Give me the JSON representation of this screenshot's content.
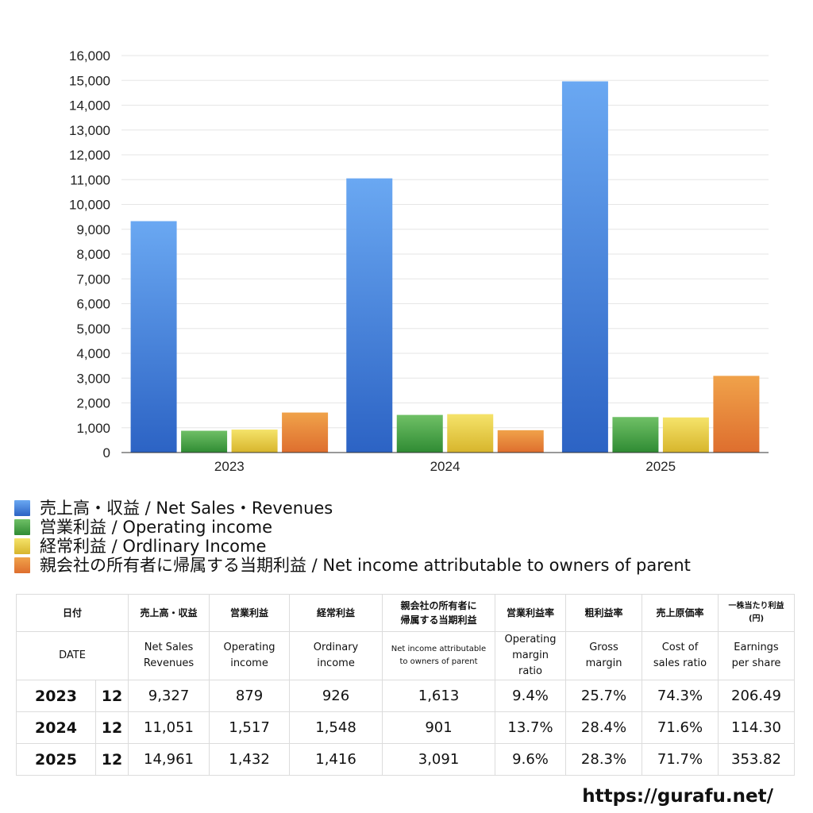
{
  "chart_data": {
    "type": "bar",
    "categories": [
      "2023",
      "2024",
      "2025"
    ],
    "series": [
      {
        "name": "売上高・収益 / Net Sales・Revenues",
        "values": [
          9327,
          11051,
          14961
        ]
      },
      {
        "name": "営業利益 / Operating income",
        "values": [
          879,
          1517,
          1432
        ]
      },
      {
        "name": "経常利益 / Ordlinary Income",
        "values": [
          926,
          1548,
          1416
        ]
      },
      {
        "name": "親会社の所有者に帰属する当期利益 / Net income attributable to owners of parent",
        "values": [
          1613,
          901,
          3091
        ]
      }
    ],
    "y_ticks": [
      "0",
      "1,000",
      "2,000",
      "3,000",
      "4,000",
      "5,000",
      "6,000",
      "7,000",
      "8,000",
      "9,000",
      "10,000",
      "11,000",
      "12,000",
      "13,000",
      "14,000",
      "15,000",
      "16,000"
    ],
    "ylim": [
      0,
      16000
    ],
    "grid": true,
    "legend_position": "bottom-left"
  },
  "colors": {
    "net_sales": [
      "#6aa8f2",
      "#2c63c4"
    ],
    "operating": [
      "#6fc066",
      "#2f8b33"
    ],
    "ordinary": [
      "#f5e36a",
      "#d7b52c"
    ],
    "net_income": [
      "#f0a24a",
      "#de6e2e"
    ]
  },
  "legend": [
    {
      "label": "売上高・収益 / Net Sales・Revenues",
      "color": "#4a86dc"
    },
    {
      "label": "営業利益 / Operating income",
      "color": "#4ea84a"
    },
    {
      "label": "経常利益 / Ordlinary Income",
      "color": "#e6cc44"
    },
    {
      "label": "親会社の所有者に帰属する当期利益 / Net income attributable to owners of parent",
      "color": "#e6873a"
    }
  ],
  "table": {
    "jp_headers": {
      "date": "日付",
      "net_sales": "売上高・収益",
      "operating": "営業利益",
      "ordinary": "経常利益",
      "net_income_l1": "親会社の所有者に",
      "net_income_l2": "帰属する当期利益",
      "op_margin": "営業利益率",
      "gross_margin": "粗利益率",
      "cost_ratio": "売上原価率",
      "eps_l1": "一株当たり利益",
      "eps_l2": "(円)"
    },
    "en_headers": {
      "date": "DATE",
      "net_sales_l1": "Net Sales",
      "net_sales_l2": "Revenues",
      "operating_l1": "Operating",
      "operating_l2": "income",
      "ordinary_l1": "Ordinary",
      "ordinary_l2": "income",
      "net_income_l1": "Net income attributable",
      "net_income_l2": "to owners of parent",
      "op_margin_l1": "Operating",
      "op_margin_l2": "margin",
      "op_margin_l3": "ratio",
      "gross_l1": "Gross",
      "gross_l2": "margin",
      "cost_l1": "Cost of",
      "cost_l2": "sales ratio",
      "eps_l1": "Earnings",
      "eps_l2": "per share"
    },
    "rows": [
      {
        "year": "2023",
        "month": "12",
        "net_sales": "9,327",
        "operating": "879",
        "ordinary": "926",
        "net_income": "1,613",
        "op_margin": "9.4%",
        "gross_margin": "25.7%",
        "cost_ratio": "74.3%",
        "eps": "206.49"
      },
      {
        "year": "2024",
        "month": "12",
        "net_sales": "11,051",
        "operating": "1,517",
        "ordinary": "1,548",
        "net_income": "901",
        "op_margin": "13.7%",
        "gross_margin": "28.4%",
        "cost_ratio": "71.6%",
        "eps": "114.30"
      },
      {
        "year": "2025",
        "month": "12",
        "net_sales": "14,961",
        "operating": "1,432",
        "ordinary": "1,416",
        "net_income": "3,091",
        "op_margin": "9.6%",
        "gross_margin": "28.3%",
        "cost_ratio": "71.7%",
        "eps": "353.82"
      }
    ]
  },
  "credit": "https://gurafu.net/"
}
